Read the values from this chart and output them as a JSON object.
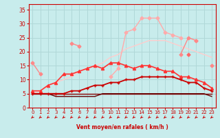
{
  "xlabel": "Vent moyen/en rafales ( km/h )",
  "ylabel": "",
  "xlim": [
    -0.5,
    23.5
  ],
  "ylim": [
    0,
    37
  ],
  "yticks": [
    0,
    5,
    10,
    15,
    20,
    25,
    30,
    35
  ],
  "xticks": [
    0,
    1,
    2,
    3,
    4,
    5,
    6,
    7,
    8,
    9,
    10,
    11,
    12,
    13,
    14,
    15,
    16,
    17,
    18,
    19,
    20,
    21,
    22,
    23
  ],
  "bg_color": "#c8ecec",
  "grid_color": "#b0d8d8",
  "lines": [
    {
      "x": [
        0,
        1,
        2,
        3,
        4,
        5,
        6,
        7,
        8,
        9,
        10,
        11,
        12,
        13,
        14,
        15,
        16,
        17,
        18,
        19,
        20,
        21,
        22,
        23
      ],
      "y": [
        null,
        null,
        null,
        null,
        null,
        null,
        null,
        null,
        null,
        null,
        11,
        14,
        27,
        28,
        32,
        32,
        32,
        27,
        26,
        25,
        null,
        24,
        null,
        null
      ],
      "color": "#ffaaaa",
      "lw": 1.0,
      "marker": "D",
      "ms": 2.5,
      "zorder": 3
    },
    {
      "x": [
        0,
        1,
        2,
        3,
        4,
        5,
        6,
        7,
        8,
        9,
        10,
        11,
        12,
        13,
        14,
        15,
        16,
        17,
        18,
        19,
        20,
        21,
        22,
        23
      ],
      "y": [
        5,
        6,
        8,
        9,
        10,
        11,
        13,
        14,
        15,
        16,
        18,
        19,
        21,
        22,
        23,
        24,
        24,
        24,
        23,
        22,
        21,
        20,
        19,
        18
      ],
      "color": "#ffcccc",
      "lw": 1.0,
      "marker": null,
      "ms": 0,
      "zorder": 2
    },
    {
      "x": [
        0,
        1,
        2,
        3,
        4,
        5,
        6,
        7,
        8,
        9,
        10,
        11,
        12,
        13,
        14,
        15,
        16,
        17,
        18,
        19,
        20,
        21,
        22,
        23
      ],
      "y": [
        16,
        12,
        null,
        null,
        null,
        23,
        22,
        null,
        null,
        null,
        null,
        null,
        null,
        null,
        null,
        null,
        null,
        null,
        null,
        19,
        25,
        24,
        null,
        15
      ],
      "color": "#ff8888",
      "lw": 1.0,
      "marker": "D",
      "ms": 2.5,
      "zorder": 3
    },
    {
      "x": [
        0,
        1,
        2,
        3,
        4,
        5,
        6,
        7,
        8,
        9,
        10,
        11,
        12,
        13,
        14,
        15,
        16,
        17,
        18,
        19,
        20,
        21,
        22,
        23
      ],
      "y": [
        null,
        null,
        null,
        null,
        null,
        null,
        null,
        null,
        null,
        null,
        null,
        null,
        null,
        null,
        null,
        null,
        null,
        null,
        null,
        null,
        19,
        null,
        null,
        null
      ],
      "color": "#ff6666",
      "lw": 1.0,
      "marker": "D",
      "ms": 2.5,
      "zorder": 3
    },
    {
      "x": [
        0,
        1,
        2,
        3,
        4,
        5,
        6,
        7,
        8,
        9,
        10,
        11,
        12,
        13,
        14,
        15,
        16,
        17,
        18,
        19,
        20,
        21,
        22,
        23
      ],
      "y": [
        6,
        6,
        8,
        9,
        12,
        12,
        13,
        14,
        15,
        14,
        16,
        16,
        15,
        14,
        15,
        15,
        14,
        13,
        13,
        11,
        11,
        10,
        9,
        7
      ],
      "color": "#ff3333",
      "lw": 1.2,
      "marker": "^",
      "ms": 3,
      "zorder": 4
    },
    {
      "x": [
        0,
        1,
        2,
        3,
        4,
        5,
        6,
        7,
        8,
        9,
        10,
        11,
        12,
        13,
        14,
        15,
        16,
        17,
        18,
        19,
        20,
        21,
        22,
        23
      ],
      "y": [
        5,
        5,
        5,
        5,
        5,
        6,
        6,
        7,
        8,
        8,
        9,
        9,
        10,
        10,
        11,
        11,
        11,
        11,
        11,
        10,
        9,
        9,
        7,
        6
      ],
      "color": "#cc0000",
      "lw": 1.3,
      "marker": "+",
      "ms": 3,
      "zorder": 4
    },
    {
      "x": [
        0,
        1,
        2,
        3,
        4,
        5,
        6,
        7,
        8,
        9,
        10,
        11,
        12,
        13,
        14,
        15,
        16,
        17,
        18,
        19,
        20,
        21,
        22,
        23
      ],
      "y": [
        5,
        5,
        5,
        5,
        5,
        5,
        5,
        5,
        5,
        5,
        5,
        5,
        5,
        5,
        5,
        5,
        5,
        5,
        5,
        5,
        5,
        5,
        5,
        5
      ],
      "color": "#880000",
      "lw": 1.0,
      "marker": null,
      "ms": 0,
      "zorder": 2
    },
    {
      "x": [
        0,
        1,
        2,
        3,
        4,
        5,
        6,
        7,
        8,
        9,
        10,
        11,
        12,
        13,
        14,
        15,
        16,
        17,
        18,
        19,
        20,
        21,
        22,
        23
      ],
      "y": [
        5,
        5,
        5,
        4,
        4,
        4,
        4,
        4,
        4,
        5,
        5,
        5,
        5,
        5,
        5,
        5,
        5,
        5,
        5,
        5,
        5,
        5,
        5,
        4
      ],
      "color": "#660000",
      "lw": 1.0,
      "marker": null,
      "ms": 0,
      "zorder": 2
    }
  ],
  "arrow_color": "#cc0000",
  "tick_color": "#cc0000",
  "label_color": "#cc0000"
}
